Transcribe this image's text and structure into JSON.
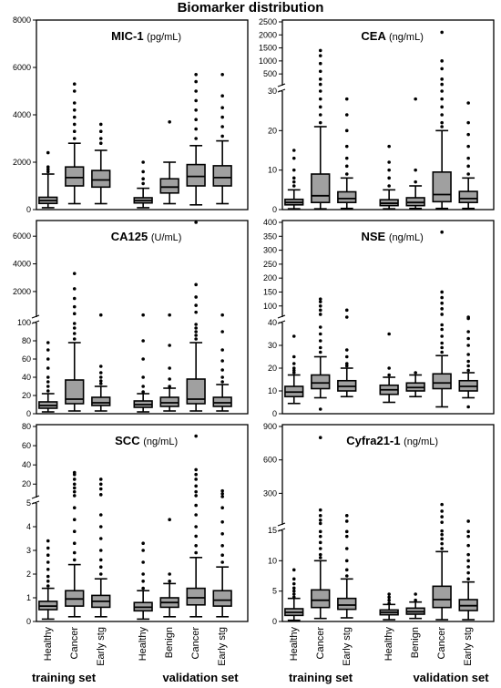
{
  "title": "Biomarker distribution",
  "colors": {
    "box": "#a0a0a0",
    "stroke": "#000000"
  },
  "group_labels": [
    "training set",
    "validation set",
    "training set",
    "validation set"
  ],
  "chart_data": [
    {
      "type": "boxplot",
      "panel": "top-left",
      "marker": "MIC-1",
      "unit": "(pg/mL)",
      "ylim": [
        0,
        8000
      ],
      "yticks": [
        0,
        2000,
        4000,
        6000,
        8000
      ],
      "categories": [
        "Healthy",
        "Cancer",
        "Early stg",
        "Healthy",
        "Benign",
        "Cancer",
        "Early stg"
      ],
      "boxes": [
        {
          "category": "Healthy",
          "group": "training set",
          "whisker_low": 80,
          "q1": 260,
          "median": 380,
          "q3": 520,
          "whisker_high": 1500,
          "outliers": [
            1600,
            1700,
            1800,
            2400
          ]
        },
        {
          "category": "Cancer",
          "group": "training set",
          "whisker_low": 250,
          "q1": 1000,
          "median": 1350,
          "q3": 1800,
          "whisker_high": 2800,
          "outliers": [
            3000,
            3300,
            3600,
            3900,
            4200,
            4500,
            5000,
            5300
          ]
        },
        {
          "category": "Early stg",
          "group": "training set",
          "whisker_low": 250,
          "q1": 950,
          "median": 1250,
          "q3": 1650,
          "whisker_high": 2500,
          "outliers": [
            2800,
            3000,
            3300,
            3600
          ]
        },
        {
          "category": "Healthy",
          "group": "validation set",
          "whisker_low": 80,
          "q1": 280,
          "median": 380,
          "q3": 500,
          "whisker_high": 900,
          "outliers": [
            1100,
            1300,
            1600,
            2000
          ]
        },
        {
          "category": "Benign",
          "group": "validation set",
          "whisker_low": 250,
          "q1": 700,
          "median": 950,
          "q3": 1300,
          "whisker_high": 2000,
          "outliers": [
            3700
          ]
        },
        {
          "category": "Cancer",
          "group": "validation set",
          "whisker_low": 200,
          "q1": 1000,
          "median": 1400,
          "q3": 1900,
          "whisker_high": 2700,
          "outliers": [
            3000,
            3400,
            3800,
            4200,
            4600,
            5000,
            5400,
            5700
          ]
        },
        {
          "category": "Early stg",
          "group": "validation set",
          "whisker_low": 250,
          "q1": 1000,
          "median": 1350,
          "q3": 1850,
          "whisker_high": 2900,
          "outliers": [
            3100,
            3500,
            3900,
            4300,
            4800,
            5700
          ]
        }
      ]
    },
    {
      "type": "boxplot",
      "panel": "top-right",
      "marker": "CEA",
      "unit": "(ng/mL)",
      "broken_axis": true,
      "lower_ylim": [
        0,
        30
      ],
      "lower_yticks": [
        0,
        10,
        20,
        30
      ],
      "upper_ylim": [
        50,
        2500
      ],
      "upper_yticks": [
        500,
        1000,
        1500,
        2000,
        2500
      ],
      "categories": [
        "Healthy",
        "Cancer",
        "Early stg",
        "Healthy",
        "Benign",
        "Cancer",
        "Early stg"
      ],
      "boxes": [
        {
          "category": "Healthy",
          "group": "training set",
          "whisker_low": 0.2,
          "q1": 1.2,
          "median": 1.8,
          "q3": 2.6,
          "whisker_high": 5,
          "outliers": [
            6,
            7,
            8,
            10,
            13,
            15
          ]
        },
        {
          "category": "Cancer",
          "group": "training set",
          "whisker_low": 0.2,
          "q1": 1.8,
          "median": 3.5,
          "q3": 9,
          "whisker_high": 21,
          "outliers": [
            22,
            24,
            26,
            28,
            30,
            100,
            300,
            600,
            900,
            1200,
            1400
          ]
        },
        {
          "category": "Early stg",
          "group": "training set",
          "whisker_low": 0.3,
          "q1": 1.8,
          "median": 2.8,
          "q3": 4.5,
          "whisker_high": 8,
          "outliers": [
            9,
            11,
            13,
            16,
            20,
            24,
            28
          ]
        },
        {
          "category": "Healthy",
          "group": "validation set",
          "whisker_low": 0.2,
          "q1": 1.0,
          "median": 1.6,
          "q3": 2.5,
          "whisker_high": 5,
          "outliers": [
            6,
            8,
            10,
            12,
            16
          ]
        },
        {
          "category": "Benign",
          "group": "validation set",
          "whisker_low": 0.3,
          "q1": 1.0,
          "median": 1.8,
          "q3": 3,
          "whisker_high": 6,
          "outliers": [
            7,
            10,
            28
          ]
        },
        {
          "category": "Cancer",
          "group": "validation set",
          "whisker_low": 0.3,
          "q1": 2.0,
          "median": 3.8,
          "q3": 9.5,
          "whisker_high": 20,
          "outliers": [
            21,
            22,
            24,
            26,
            28,
            30,
            100,
            300,
            700,
            1000,
            2100
          ]
        },
        {
          "category": "Early stg",
          "group": "validation set",
          "whisker_low": 0.3,
          "q1": 1.8,
          "median": 2.8,
          "q3": 4.6,
          "whisker_high": 8,
          "outliers": [
            9,
            11,
            13,
            16,
            19,
            22,
            27
          ]
        }
      ]
    },
    {
      "type": "boxplot",
      "panel": "middle-left",
      "marker": "CA125",
      "unit": "(U/mL)",
      "broken_axis": true,
      "lower_ylim": [
        0,
        100
      ],
      "lower_yticks": [
        0,
        20,
        40,
        60,
        80,
        100
      ],
      "upper_ylim": [
        150,
        7000
      ],
      "upper_yticks": [
        2000,
        4000,
        6000
      ],
      "categories": [
        "Healthy",
        "Cancer",
        "Early stg",
        "Healthy",
        "Benign",
        "Cancer",
        "Early stg"
      ],
      "boxes": [
        {
          "category": "Healthy",
          "group": "training set",
          "whisker_low": 2,
          "q1": 6,
          "median": 9,
          "q3": 13,
          "whisker_high": 22,
          "outliers": [
            25,
            30,
            35,
            40,
            50,
            60,
            70,
            78
          ]
        },
        {
          "category": "Cancer",
          "group": "training set",
          "whisker_low": 3,
          "q1": 11,
          "median": 16,
          "q3": 37,
          "whisker_high": 78,
          "outliers": [
            82,
            88,
            94,
            99,
            400,
            900,
            1500,
            2200,
            3300
          ]
        },
        {
          "category": "Early stg",
          "group": "training set",
          "whisker_low": 3,
          "q1": 9,
          "median": 12,
          "q3": 18,
          "whisker_high": 30,
          "outliers": [
            33,
            36,
            40,
            45,
            52,
            300
          ]
        },
        {
          "category": "Healthy",
          "group": "validation set",
          "whisker_low": 2,
          "q1": 7,
          "median": 10,
          "q3": 14,
          "whisker_high": 22,
          "outliers": [
            24,
            30,
            40,
            60,
            80,
            300
          ]
        },
        {
          "category": "Benign",
          "group": "validation set",
          "whisker_low": 3,
          "q1": 8,
          "median": 12,
          "q3": 18,
          "whisker_high": 28,
          "outliers": [
            30,
            38,
            50,
            75,
            300
          ]
        },
        {
          "category": "Cancer",
          "group": "validation set",
          "whisker_low": 3,
          "q1": 11,
          "median": 16,
          "q3": 38,
          "whisker_high": 78,
          "outliers": [
            82,
            86,
            90,
            94,
            98,
            500,
            1000,
            1600,
            2500,
            7000
          ]
        },
        {
          "category": "Early stg",
          "group": "validation set",
          "whisker_low": 3,
          "q1": 8,
          "median": 12,
          "q3": 18,
          "whisker_high": 32,
          "outliers": [
            35,
            40,
            48,
            58,
            70,
            90,
            300
          ]
        }
      ]
    },
    {
      "type": "boxplot",
      "panel": "middle-right",
      "marker": "NSE",
      "unit": "(ng/mL)",
      "broken_axis": true,
      "lower_ylim": [
        0,
        40
      ],
      "lower_yticks": [
        0,
        10,
        20,
        30,
        40
      ],
      "upper_ylim": [
        60,
        400
      ],
      "upper_yticks": [
        100,
        150,
        200,
        250,
        300,
        350,
        400
      ],
      "categories": [
        "Healthy",
        "Cancer",
        "Early stg",
        "Healthy",
        "Benign",
        "Cancer",
        "Early stg"
      ],
      "boxes": [
        {
          "category": "Healthy",
          "group": "training set",
          "whisker_low": 4.5,
          "q1": 7.5,
          "median": 9.5,
          "q3": 12,
          "whisker_high": 17,
          "outliers": [
            18,
            19,
            20,
            22,
            25,
            34
          ]
        },
        {
          "category": "Cancer",
          "group": "training set",
          "whisker_low": 7,
          "q1": 11,
          "median": 13.5,
          "q3": 17,
          "whisker_high": 25,
          "outliers": [
            2,
            27,
            29,
            32,
            35,
            38,
            70,
            85,
            100,
            115,
            125
          ]
        },
        {
          "category": "Early stg",
          "group": "training set",
          "whisker_low": 7.5,
          "q1": 10,
          "median": 12,
          "q3": 14.5,
          "whisker_high": 20,
          "outliers": [
            21,
            22,
            25,
            28,
            60,
            85
          ]
        },
        {
          "category": "Healthy",
          "group": "validation set",
          "whisker_low": 5,
          "q1": 8.5,
          "median": 10.5,
          "q3": 12.5,
          "whisker_high": 16,
          "outliers": [
            17,
            20,
            35
          ]
        },
        {
          "category": "Benign",
          "group": "validation set",
          "whisker_low": 7.5,
          "q1": 10,
          "median": 11.5,
          "q3": 13.5,
          "whisker_high": 17,
          "outliers": [
            18
          ]
        },
        {
          "category": "Cancer",
          "group": "validation set",
          "whisker_low": 3,
          "q1": 11,
          "median": 13.5,
          "q3": 17.5,
          "whisker_high": 25.5,
          "outliers": [
            27,
            29,
            31,
            34,
            37,
            39,
            70,
            90,
            110,
            130,
            150,
            365
          ]
        },
        {
          "category": "Early stg",
          "group": "validation set",
          "whisker_low": 7,
          "q1": 10,
          "median": 12,
          "q3": 14.5,
          "whisker_high": 18,
          "outliers": [
            3,
            19,
            21,
            23,
            26,
            30,
            33,
            36,
            55,
            60
          ]
        }
      ]
    },
    {
      "type": "boxplot",
      "panel": "bottom-left",
      "marker": "SCC",
      "unit": "(ng/mL)",
      "broken_axis": true,
      "lower_ylim": [
        0,
        5
      ],
      "lower_yticks": [
        0,
        1,
        2,
        3,
        4,
        5
      ],
      "upper_ylim": [
        6,
        80
      ],
      "upper_yticks": [
        20,
        40,
        60,
        80
      ],
      "categories": [
        "Healthy",
        "Cancer",
        "Early stg",
        "Healthy",
        "Benign",
        "Cancer",
        "Early stg"
      ],
      "boxes": [
        {
          "category": "Healthy",
          "group": "training set",
          "whisker_low": 0.1,
          "q1": 0.5,
          "median": 0.65,
          "q3": 0.85,
          "whisker_high": 1.4,
          "outliers": [
            1.5,
            1.7,
            1.9,
            2.2,
            2.5,
            2.8,
            3.1,
            3.4
          ]
        },
        {
          "category": "Cancer",
          "group": "training set",
          "whisker_low": 0.2,
          "q1": 0.65,
          "median": 0.95,
          "q3": 1.3,
          "whisker_high": 2.4,
          "outliers": [
            2.6,
            2.9,
            3.3,
            3.8,
            4.3,
            4.8,
            8,
            12,
            16,
            20,
            25,
            30,
            32
          ]
        },
        {
          "category": "Early stg",
          "group": "training set",
          "whisker_low": 0.2,
          "q1": 0.6,
          "median": 0.85,
          "q3": 1.1,
          "whisker_high": 1.8,
          "outliers": [
            2.0,
            2.3,
            2.6,
            3.0,
            3.5,
            4.0,
            4.5,
            9,
            15,
            20,
            25
          ]
        },
        {
          "category": "Healthy",
          "group": "validation set",
          "whisker_low": 0.1,
          "q1": 0.45,
          "median": 0.6,
          "q3": 0.8,
          "whisker_high": 1.3,
          "outliers": [
            1.4,
            1.7,
            2.0,
            2.5,
            3.0,
            3.3
          ]
        },
        {
          "category": "Benign",
          "group": "validation set",
          "whisker_low": 0.2,
          "q1": 0.6,
          "median": 0.8,
          "q3": 1.0,
          "whisker_high": 1.6,
          "outliers": [
            1.7,
            2.0,
            4.3
          ]
        },
        {
          "category": "Cancer",
          "group": "validation set",
          "whisker_low": 0.2,
          "q1": 0.7,
          "median": 1.0,
          "q3": 1.4,
          "whisker_high": 2.7,
          "outliers": [
            2.9,
            3.2,
            3.6,
            4.0,
            4.5,
            4.9,
            8,
            12,
            18,
            25,
            30,
            35,
            70
          ]
        },
        {
          "category": "Early stg",
          "group": "validation set",
          "whisker_low": 0.2,
          "q1": 0.65,
          "median": 0.9,
          "q3": 1.3,
          "whisker_high": 2.3,
          "outliers": [
            2.5,
            2.8,
            3.2,
            3.7,
            4.2,
            4.8,
            7,
            10,
            13
          ]
        }
      ]
    },
    {
      "type": "boxplot",
      "panel": "bottom-right",
      "marker": "Cyfra21-1",
      "unit": "(ng/mL)",
      "broken_axis": true,
      "lower_ylim": [
        0,
        15
      ],
      "lower_yticks": [
        0,
        5,
        10,
        15
      ],
      "upper_ylim": [
        17,
        900
      ],
      "upper_yticks": [
        300,
        600,
        900
      ],
      "categories": [
        "Healthy",
        "Cancer",
        "Early stg",
        "Healthy",
        "Benign",
        "Cancer",
        "Early stg"
      ],
      "boxes": [
        {
          "category": "Healthy",
          "group": "training set",
          "whisker_low": 0.2,
          "q1": 1.0,
          "median": 1.5,
          "q3": 2.1,
          "whisker_high": 3.8,
          "outliers": [
            4.0,
            4.5,
            5.0,
            5.5,
            6.2,
            7.0,
            8.5
          ]
        },
        {
          "category": "Cancer",
          "group": "training set",
          "whisker_low": 0.5,
          "q1": 2.3,
          "median": 3.5,
          "q3": 5.2,
          "whisker_high": 10,
          "outliers": [
            10.5,
            11,
            12,
            13,
            14,
            14.8,
            30,
            60,
            100,
            150,
            800
          ]
        },
        {
          "category": "Early stg",
          "group": "training set",
          "whisker_low": 0.6,
          "q1": 2.0,
          "median": 2.7,
          "q3": 3.8,
          "whisker_high": 7,
          "outliers": [
            7.5,
            8.5,
            10,
            12,
            14,
            14.8,
            50,
            100
          ]
        },
        {
          "category": "Healthy",
          "group": "validation set",
          "whisker_low": 0.3,
          "q1": 1.1,
          "median": 1.5,
          "q3": 1.9,
          "whisker_high": 2.8,
          "outliers": [
            3.0,
            3.5,
            4.0,
            4.5
          ]
        },
        {
          "category": "Benign",
          "group": "validation set",
          "whisker_low": 0.5,
          "q1": 1.2,
          "median": 1.6,
          "q3": 2.2,
          "whisker_high": 3.2,
          "outliers": [
            3.5,
            4.5
          ]
        },
        {
          "category": "Cancer",
          "group": "validation set",
          "whisker_low": 0.3,
          "q1": 2.3,
          "median": 3.6,
          "q3": 5.8,
          "whisker_high": 11.5,
          "outliers": [
            12,
            12.8,
            13.6,
            14.3,
            14.9,
            40,
            90,
            140,
            200
          ]
        },
        {
          "category": "Early stg",
          "group": "validation set",
          "whisker_low": 0.3,
          "q1": 1.8,
          "median": 2.6,
          "q3": 3.6,
          "whisker_high": 6.5,
          "outliers": [
            7,
            8,
            9,
            10,
            11,
            12.5,
            14,
            14.8,
            50
          ]
        }
      ]
    }
  ]
}
